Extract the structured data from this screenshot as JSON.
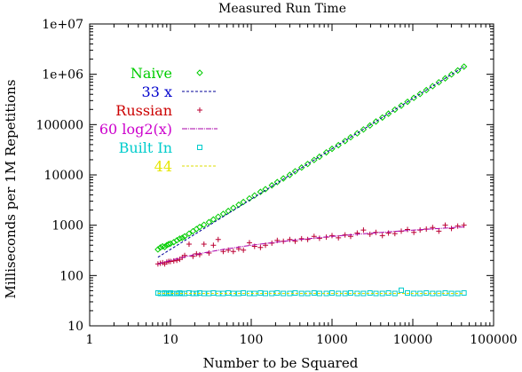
{
  "chart_data": {
    "type": "scatter",
    "title": "Measured Run Time",
    "xlabel": "Number to be Squared",
    "ylabel": "Milliseconds per 1M Repetitions",
    "x_scale": "log",
    "y_scale": "log",
    "xlim": [
      1,
      100000
    ],
    "ylim": [
      10,
      10000000
    ],
    "x_ticks": [
      {
        "value": 1,
        "label": "1"
      },
      {
        "value": 10,
        "label": "10"
      },
      {
        "value": 100,
        "label": "100"
      },
      {
        "value": 1000,
        "label": "1000"
      },
      {
        "value": 10000,
        "label": "10000"
      },
      {
        "value": 100000,
        "label": "100000"
      }
    ],
    "y_ticks": [
      {
        "value": 10,
        "label": "10"
      },
      {
        "value": 100,
        "label": "100"
      },
      {
        "value": 1000,
        "label": "1000"
      },
      {
        "value": 10000,
        "label": "10000"
      },
      {
        "value": 100000,
        "label": "100000"
      },
      {
        "value": 1000000,
        "label": "1e+06"
      },
      {
        "value": 10000000,
        "label": "1e+07"
      }
    ],
    "grid": false,
    "legend_position": "top-left",
    "series": [
      {
        "name": "Naive",
        "kind": "points",
        "marker": "diamond",
        "color": "#00cc00",
        "label_color": "#00cc00",
        "points": [
          [
            7,
            330
          ],
          [
            7.5,
            360
          ],
          [
            8,
            380
          ],
          [
            8.5,
            370
          ],
          [
            9,
            400
          ],
          [
            9.5,
            420
          ],
          [
            10,
            430
          ],
          [
            11,
            460
          ],
          [
            12,
            500
          ],
          [
            13,
            540
          ],
          [
            14,
            560
          ],
          [
            15,
            600
          ],
          [
            17,
            680
          ],
          [
            19,
            760
          ],
          [
            21,
            840
          ],
          [
            23,
            920
          ],
          [
            26,
            1020
          ],
          [
            30,
            1150
          ],
          [
            34,
            1300
          ],
          [
            39,
            1470
          ],
          [
            45,
            1680
          ],
          [
            52,
            1920
          ],
          [
            60,
            2200
          ],
          [
            70,
            2550
          ],
          [
            80,
            2900
          ],
          [
            95,
            3400
          ],
          [
            110,
            3900
          ],
          [
            130,
            4600
          ],
          [
            150,
            5200
          ],
          [
            180,
            6200
          ],
          [
            210,
            7200
          ],
          [
            250,
            8500
          ],
          [
            300,
            10000
          ],
          [
            350,
            11800
          ],
          [
            420,
            14000
          ],
          [
            500,
            16500
          ],
          [
            600,
            19800
          ],
          [
            700,
            23000
          ],
          [
            850,
            28000
          ],
          [
            1000,
            33000
          ],
          [
            1200,
            39000
          ],
          [
            1450,
            47000
          ],
          [
            1700,
            56000
          ],
          [
            2050,
            67000
          ],
          [
            2450,
            80000
          ],
          [
            2950,
            96000
          ],
          [
            3500,
            115000
          ],
          [
            4200,
            138000
          ],
          [
            5000,
            165000
          ],
          [
            6000,
            198000
          ],
          [
            7200,
            238000
          ],
          [
            8600,
            284000
          ],
          [
            10300,
            340000
          ],
          [
            12300,
            406000
          ],
          [
            14700,
            485000
          ],
          [
            17600,
            580000
          ],
          [
            21000,
            693000
          ],
          [
            25200,
            830000
          ],
          [
            30100,
            993000
          ],
          [
            36000,
            1190000
          ],
          [
            43000,
            1420000
          ]
        ]
      },
      {
        "name": "33 x",
        "kind": "line",
        "dash": "3,2",
        "color": "#000099",
        "label_color": "#0000cc",
        "points": [
          [
            7,
            231
          ],
          [
            43000,
            1419000
          ]
        ]
      },
      {
        "name": "Russian",
        "kind": "points",
        "marker": "plus",
        "color": "#bb0033",
        "label_color": "#cc0000",
        "points": [
          [
            7,
            170
          ],
          [
            7.5,
            175
          ],
          [
            8,
            180
          ],
          [
            8.5,
            170
          ],
          [
            9,
            185
          ],
          [
            9.5,
            190
          ],
          [
            10,
            190
          ],
          [
            11,
            195
          ],
          [
            12,
            200
          ],
          [
            13,
            210
          ],
          [
            14,
            230
          ],
          [
            15,
            250
          ],
          [
            17,
            420
          ],
          [
            19,
            240
          ],
          [
            21,
            270
          ],
          [
            23,
            260
          ],
          [
            26,
            420
          ],
          [
            30,
            280
          ],
          [
            34,
            400
          ],
          [
            39,
            520
          ],
          [
            45,
            300
          ],
          [
            52,
            320
          ],
          [
            60,
            300
          ],
          [
            70,
            340
          ],
          [
            80,
            320
          ],
          [
            95,
            450
          ],
          [
            110,
            380
          ],
          [
            130,
            360
          ],
          [
            150,
            400
          ],
          [
            180,
            440
          ],
          [
            210,
            500
          ],
          [
            250,
            480
          ],
          [
            300,
            520
          ],
          [
            350,
            480
          ],
          [
            420,
            540
          ],
          [
            500,
            520
          ],
          [
            600,
            600
          ],
          [
            700,
            550
          ],
          [
            850,
            580
          ],
          [
            1000,
            620
          ],
          [
            1200,
            560
          ],
          [
            1450,
            640
          ],
          [
            1700,
            600
          ],
          [
            2050,
            700
          ],
          [
            2450,
            800
          ],
          [
            2950,
            660
          ],
          [
            3500,
            720
          ],
          [
            4200,
            620
          ],
          [
            5000,
            700
          ],
          [
            6000,
            680
          ],
          [
            7200,
            760
          ],
          [
            8600,
            820
          ],
          [
            10300,
            720
          ],
          [
            12300,
            800
          ],
          [
            14700,
            840
          ],
          [
            17600,
            900
          ],
          [
            21000,
            760
          ],
          [
            25200,
            1000
          ],
          [
            30100,
            860
          ],
          [
            36000,
            960
          ],
          [
            43000,
            1000
          ]
        ]
      },
      {
        "name": "60 log2(x)",
        "kind": "function",
        "fn": "60log2",
        "dash": "6,1,1,1",
        "color": "#aa00aa",
        "label_color": "#cc00cc",
        "x_range": [
          7,
          43000
        ]
      },
      {
        "name": "Built In",
        "kind": "points",
        "marker": "square",
        "color": "#00cccc",
        "label_color": "#00cccc",
        "points": [
          [
            7,
            45
          ],
          [
            7.5,
            44
          ],
          [
            8,
            44
          ],
          [
            8.5,
            45
          ],
          [
            9,
            44
          ],
          [
            9.5,
            44
          ],
          [
            10,
            45
          ],
          [
            11,
            44
          ],
          [
            12,
            44
          ],
          [
            13,
            45
          ],
          [
            14,
            44
          ],
          [
            15,
            44
          ],
          [
            17,
            45
          ],
          [
            19,
            44
          ],
          [
            21,
            44
          ],
          [
            23,
            45
          ],
          [
            26,
            44
          ],
          [
            30,
            44
          ],
          [
            34,
            45
          ],
          [
            39,
            44
          ],
          [
            45,
            44
          ],
          [
            52,
            45
          ],
          [
            60,
            44
          ],
          [
            70,
            44
          ],
          [
            80,
            45
          ],
          [
            95,
            44
          ],
          [
            110,
            44
          ],
          [
            130,
            45
          ],
          [
            150,
            44
          ],
          [
            180,
            44
          ],
          [
            210,
            45
          ],
          [
            250,
            44
          ],
          [
            300,
            44
          ],
          [
            350,
            45
          ],
          [
            420,
            44
          ],
          [
            500,
            44
          ],
          [
            600,
            45
          ],
          [
            700,
            44
          ],
          [
            850,
            44
          ],
          [
            1000,
            45
          ],
          [
            1200,
            44
          ],
          [
            1450,
            44
          ],
          [
            1700,
            45
          ],
          [
            2050,
            44
          ],
          [
            2450,
            44
          ],
          [
            2950,
            45
          ],
          [
            3500,
            44
          ],
          [
            4200,
            44
          ],
          [
            5000,
            45
          ],
          [
            6000,
            44
          ],
          [
            7200,
            51
          ],
          [
            8600,
            45
          ],
          [
            10300,
            44
          ],
          [
            12300,
            44
          ],
          [
            14700,
            45
          ],
          [
            17600,
            44
          ],
          [
            21000,
            44
          ],
          [
            25200,
            45
          ],
          [
            30100,
            44
          ],
          [
            36000,
            44
          ],
          [
            43000,
            45
          ]
        ]
      },
      {
        "name": "44",
        "kind": "line",
        "dash": "3,2",
        "color": "#dddd00",
        "label_color": "#e6e600",
        "points": [
          [
            7,
            44
          ],
          [
            43000,
            44
          ]
        ]
      }
    ]
  }
}
